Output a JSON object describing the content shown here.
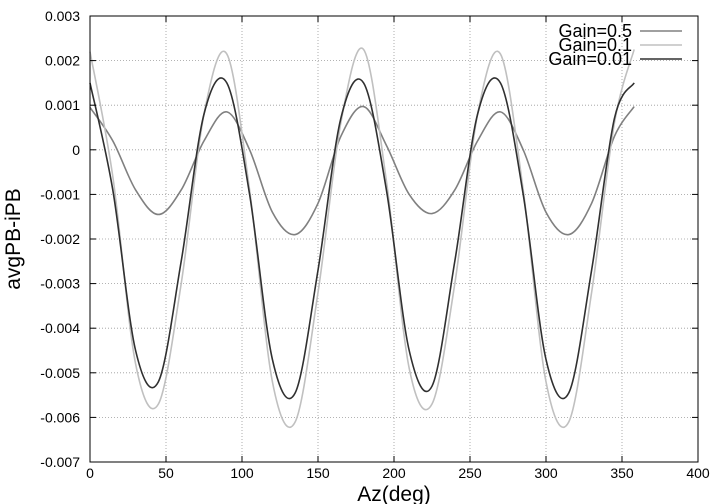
{
  "chart_data": {
    "type": "line",
    "title": "",
    "xlabel": "Az(deg)",
    "ylabel": "avgPB-iPB",
    "xlim": [
      0,
      400
    ],
    "ylim": [
      -0.007,
      0.003
    ],
    "xticks": [
      0,
      50,
      100,
      150,
      200,
      250,
      300,
      350,
      400
    ],
    "yticks": [
      -0.007,
      -0.006,
      -0.005,
      -0.004,
      -0.003,
      -0.002,
      -0.001,
      0,
      0.001,
      0.002,
      0.003
    ],
    "xtick_labels": [
      "0",
      "50",
      "100",
      "150",
      "200",
      "250",
      "300",
      "350",
      "400"
    ],
    "ytick_labels": [
      "-0.007",
      "-0.006",
      "-0.005",
      "-0.004",
      "-0.003",
      "-0.002",
      "-0.001",
      "0",
      "0.001",
      "0.002",
      "0.003"
    ],
    "grid": true,
    "legend_position": "top-right",
    "series": [
      {
        "name": "Gain=0.5",
        "color": "#808080",
        "x": [
          0,
          15,
          30,
          45,
          60,
          75,
          90,
          105,
          120,
          135,
          150,
          165,
          180,
          195,
          210,
          225,
          240,
          255,
          270,
          285,
          300,
          315,
          330,
          345,
          358
        ],
        "y": [
          0.00095,
          0.0002,
          -0.0009,
          -0.00145,
          -0.0009,
          0.0002,
          0.00085,
          0.0,
          -0.0014,
          -0.0019,
          -0.0012,
          0.0003,
          0.00097,
          0.0001,
          -0.001,
          -0.00143,
          -0.0009,
          0.0002,
          0.00085,
          0.0,
          -0.0014,
          -0.0019,
          -0.0012,
          0.0003,
          0.00097
        ]
      },
      {
        "name": "Gain=0.1",
        "color": "#c0c0c0",
        "x": [
          0,
          15,
          30,
          45,
          60,
          75,
          90,
          105,
          120,
          135,
          150,
          165,
          180,
          195,
          210,
          225,
          240,
          255,
          270,
          285,
          300,
          315,
          330,
          345,
          358
        ],
        "y": [
          0.0022,
          -0.0006,
          -0.0048,
          -0.0057,
          -0.003,
          0.0008,
          0.00215,
          -0.0009,
          -0.0052,
          -0.0061,
          -0.0032,
          0.0006,
          0.00225,
          -0.0007,
          -0.0049,
          -0.0057,
          -0.003,
          0.0008,
          0.00215,
          -0.0009,
          -0.0052,
          -0.0061,
          -0.0032,
          0.0006,
          0.00225
        ]
      },
      {
        "name": "Gain=0.01",
        "color": "#303030",
        "x": [
          0,
          15,
          30,
          45,
          60,
          75,
          90,
          105,
          120,
          135,
          150,
          165,
          180,
          195,
          210,
          225,
          240,
          255,
          270,
          285,
          300,
          315,
          330,
          345,
          358
        ],
        "y": [
          0.0015,
          -0.0009,
          -0.0045,
          -0.0052,
          -0.0025,
          0.0008,
          0.0015,
          -0.001,
          -0.0047,
          -0.00545,
          -0.0027,
          0.0007,
          0.0015,
          -0.0009,
          -0.0045,
          -0.0053,
          -0.0025,
          0.0008,
          0.0015,
          -0.001,
          -0.0047,
          -0.00545,
          -0.0027,
          0.0007,
          0.0015
        ]
      }
    ]
  }
}
